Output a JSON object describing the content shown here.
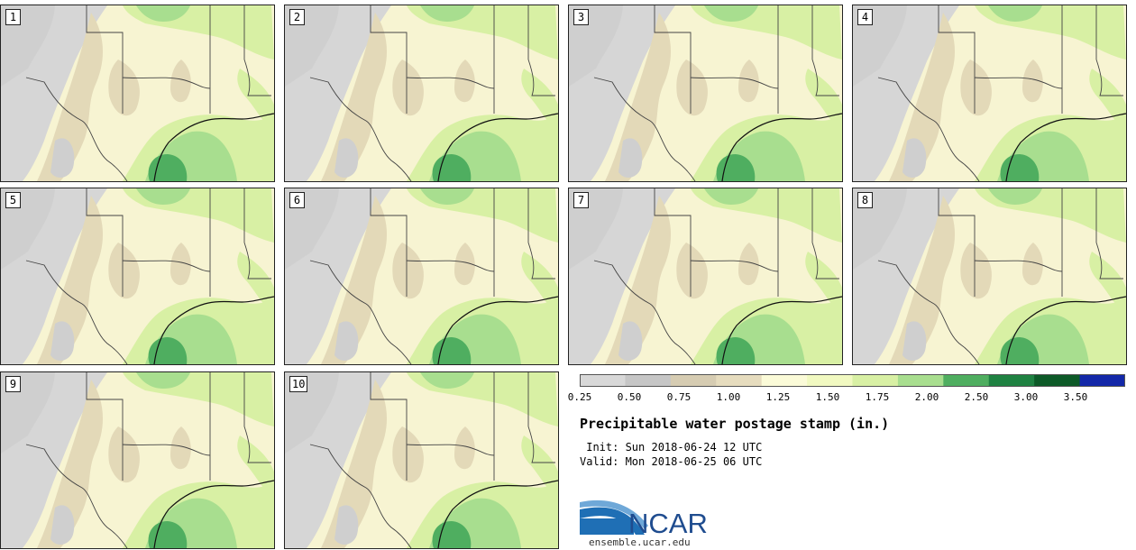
{
  "panels": [
    {
      "label": "1"
    },
    {
      "label": "2"
    },
    {
      "label": "3"
    },
    {
      "label": "4"
    },
    {
      "label": "5"
    },
    {
      "label": "6"
    },
    {
      "label": "7"
    },
    {
      "label": "8"
    },
    {
      "label": "9"
    },
    {
      "label": "10"
    }
  ],
  "colorbar": {
    "ticks": [
      "0.25",
      "0.50",
      "0.75",
      "1.00",
      "1.25",
      "1.50",
      "1.75",
      "2.00",
      "2.50",
      "3.00",
      "3.50"
    ],
    "colors": [
      "#d8d8d8",
      "#c6c6c6",
      "#d6ccb2",
      "#e6dcbe",
      "#fbfbd8",
      "#f1f9c1",
      "#d8f0a4",
      "#a8de8f",
      "#4fae60",
      "#1f8242",
      "#0d5a28",
      "#1328a8"
    ]
  },
  "title": "Precipitable water postage stamp (in.)",
  "init_time": " Init: Sun 2018-06-24 12 UTC",
  "valid_time": "Valid: Mon 2018-06-25 06 UTC",
  "logo": {
    "text": "NCAR",
    "url_text": "ensemble.ucar.edu",
    "colors": {
      "blue": "#1f6fb5",
      "text": "#1f4c8f"
    }
  }
}
